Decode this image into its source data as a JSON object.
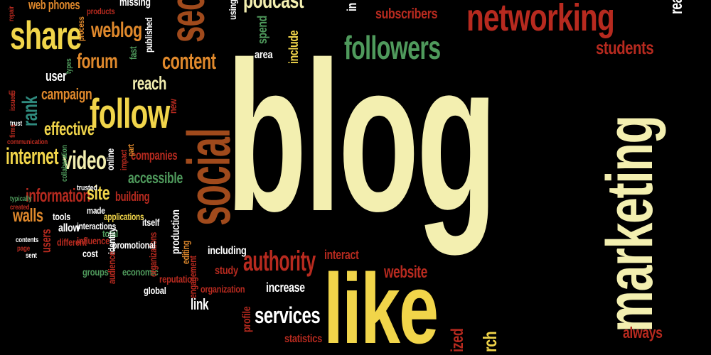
{
  "palette": {
    "background": "#000000",
    "cream": "#f3efb0",
    "yellow": "#f1d54a",
    "orange": "#e0892c",
    "red": "#b72a1f",
    "teal": "#2f8a7e",
    "green": "#4f9a5c",
    "brown": "#a04a1c",
    "white": "#ffffff"
  },
  "words": [
    {
      "text": "blog",
      "color": "cream"
    },
    {
      "text": "like",
      "color": "yellow"
    },
    {
      "text": "marketing",
      "color": "cream"
    },
    {
      "text": "social",
      "color": "brown"
    },
    {
      "text": "networking",
      "color": "red"
    },
    {
      "text": "seo",
      "color": "brown"
    },
    {
      "text": "followers",
      "color": "green"
    },
    {
      "text": "share",
      "color": "yellow"
    },
    {
      "text": "follow",
      "color": "yellow"
    },
    {
      "text": "podcast",
      "color": "cream"
    },
    {
      "text": "authority",
      "color": "red"
    },
    {
      "text": "services",
      "color": "white"
    },
    {
      "text": "students",
      "color": "red"
    },
    {
      "text": "subscribers",
      "color": "red"
    },
    {
      "text": "weblog",
      "color": "orange"
    },
    {
      "text": "forum",
      "color": "orange"
    },
    {
      "text": "content",
      "color": "orange"
    },
    {
      "text": "reach",
      "color": "cream"
    },
    {
      "text": "internet",
      "color": "yellow"
    },
    {
      "text": "video",
      "color": "cream"
    },
    {
      "text": "rank",
      "color": "teal"
    },
    {
      "text": "campaign",
      "color": "orange"
    },
    {
      "text": "effective",
      "color": "yellow"
    },
    {
      "text": "information",
      "color": "red"
    },
    {
      "text": "walls",
      "color": "orange"
    },
    {
      "text": "site",
      "color": "yellow"
    },
    {
      "text": "accessible",
      "color": "green"
    },
    {
      "text": "companies",
      "color": "red"
    },
    {
      "text": "building",
      "color": "red"
    },
    {
      "text": "applications",
      "color": "yellow"
    },
    {
      "text": "production",
      "color": "white"
    },
    {
      "text": "website",
      "color": "red"
    },
    {
      "text": "interact",
      "color": "red"
    },
    {
      "text": "increase",
      "color": "white"
    },
    {
      "text": "always",
      "color": "red"
    },
    {
      "text": "statistics",
      "color": "red"
    },
    {
      "text": "link",
      "color": "white"
    },
    {
      "text": "including",
      "color": "white"
    },
    {
      "text": "study",
      "color": "red"
    },
    {
      "text": "organization",
      "color": "red"
    },
    {
      "text": "reputation",
      "color": "red"
    },
    {
      "text": "global",
      "color": "white"
    },
    {
      "text": "economic",
      "color": "green"
    },
    {
      "text": "groups",
      "color": "green"
    },
    {
      "text": "engagement",
      "color": "red"
    },
    {
      "text": "editing",
      "color": "orange"
    },
    {
      "text": "organizations",
      "color": "red"
    },
    {
      "text": "promotional",
      "color": "white"
    },
    {
      "text": "itself",
      "color": "white"
    },
    {
      "text": "user",
      "color": "white"
    },
    {
      "text": "users",
      "color": "red"
    },
    {
      "text": "tools",
      "color": "white"
    },
    {
      "text": "allow",
      "color": "white"
    },
    {
      "text": "interactions",
      "color": "white"
    },
    {
      "text": "made",
      "color": "white"
    },
    {
      "text": "different",
      "color": "red"
    },
    {
      "text": "influence",
      "color": "red"
    },
    {
      "text": "cost",
      "color": "white"
    },
    {
      "text": "total",
      "color": "green"
    },
    {
      "text": "identity",
      "color": "white"
    },
    {
      "text": "audience",
      "color": "red"
    },
    {
      "text": "profile",
      "color": "red"
    },
    {
      "text": "using",
      "color": "white"
    },
    {
      "text": "spend",
      "color": "green"
    },
    {
      "text": "area",
      "color": "white"
    },
    {
      "text": "include",
      "color": "yellow"
    },
    {
      "text": "in",
      "color": "white"
    },
    {
      "text": "published",
      "color": "white"
    },
    {
      "text": "process",
      "color": "orange"
    },
    {
      "text": "fast",
      "color": "green"
    },
    {
      "text": "types",
      "color": "green"
    },
    {
      "text": "new",
      "color": "red"
    },
    {
      "text": "online",
      "color": "white"
    },
    {
      "text": "impact",
      "color": "red"
    },
    {
      "text": "part",
      "color": "orange"
    },
    {
      "text": "trusted",
      "color": "white"
    },
    {
      "text": "collaboration",
      "color": "green"
    },
    {
      "text": "communication",
      "color": "red"
    },
    {
      "text": "typically",
      "color": "green"
    },
    {
      "text": "created",
      "color": "red"
    },
    {
      "text": "contents",
      "color": "white"
    },
    {
      "text": "page",
      "color": "red"
    },
    {
      "text": "sent",
      "color": "white"
    },
    {
      "text": "trust",
      "color": "white"
    },
    {
      "text": "issued",
      "color": "red"
    },
    {
      "text": "firms",
      "color": "red"
    },
    {
      "text": "web phones",
      "color": "orange"
    },
    {
      "text": "products",
      "color": "red"
    },
    {
      "text": "missing",
      "color": "white"
    },
    {
      "text": "ized",
      "color": "red"
    },
    {
      "text": "rch",
      "color": "yellow"
    },
    {
      "text": "rea",
      "color": "white"
    },
    {
      "text": "repair",
      "color": "red"
    },
    {
      "text": "up",
      "color": "red"
    }
  ]
}
